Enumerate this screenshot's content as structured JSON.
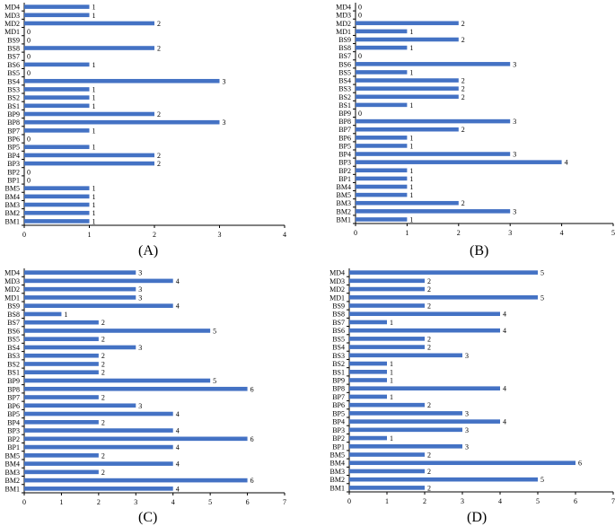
{
  "chart_data": [
    {
      "panel": "(A)",
      "type": "bar",
      "orientation": "horizontal",
      "categories": [
        "BM1",
        "BM2",
        "BM3",
        "BM4",
        "BM5",
        "BP1",
        "BP2",
        "BP3",
        "BP4",
        "BP5",
        "BP6",
        "BP7",
        "BP8",
        "BP9",
        "BS1",
        "BS2",
        "BS3",
        "BS4",
        "BS5",
        "BS6",
        "BS7",
        "BS8",
        "BS9",
        "MD1",
        "MD2",
        "MD3",
        "MD4"
      ],
      "values": [
        1,
        1,
        1,
        1,
        1,
        0,
        0,
        2,
        2,
        1,
        0,
        1,
        3,
        2,
        1,
        1,
        1,
        3,
        0,
        1,
        0,
        2,
        0,
        0,
        2,
        1,
        1
      ],
      "xlim": [
        0,
        4
      ],
      "xticks": [
        "0",
        "1",
        "2",
        "3",
        "4"
      ],
      "color": "#4472c4"
    },
    {
      "panel": "(B)",
      "type": "bar",
      "orientation": "horizontal",
      "categories": [
        "BM1",
        "BM2",
        "BM3",
        "BM5",
        "BM4",
        "BP1",
        "BP2",
        "BP3",
        "BP4",
        "BP5",
        "BP6",
        "BP7",
        "BP8",
        "BP9",
        "BS1",
        "BS2",
        "BS3",
        "BS4",
        "BS5",
        "BS6",
        "BS7",
        "BS8",
        "BS9",
        "MD1",
        "MD2",
        "MD3",
        "MD4"
      ],
      "values": [
        1,
        3,
        2,
        1,
        1,
        1,
        1,
        4,
        3,
        1,
        1,
        2,
        3,
        0,
        1,
        2,
        2,
        2,
        1,
        3,
        0,
        1,
        2,
        1,
        2,
        0,
        0
      ],
      "xlim": [
        0,
        5
      ],
      "xticks": [
        "0",
        "1",
        "2",
        "3",
        "4",
        "5"
      ],
      "color": "#4472c4"
    },
    {
      "panel": "(C)",
      "type": "bar",
      "orientation": "horizontal",
      "categories": [
        "BM1",
        "BM2",
        "BM3",
        "BM4",
        "BM5",
        "BP1",
        "BP2",
        "BP3",
        "BP4",
        "BP5",
        "BP6",
        "BP7",
        "BP8",
        "BP9",
        "BS1",
        "BS2",
        "BS3",
        "BS4",
        "BS5",
        "BS6",
        "BS7",
        "BS8",
        "BS9",
        "MD1",
        "MD2",
        "MD3",
        "MD4"
      ],
      "values": [
        4,
        6,
        2,
        4,
        2,
        4,
        6,
        4,
        2,
        4,
        3,
        2,
        6,
        5,
        2,
        2,
        2,
        3,
        2,
        5,
        2,
        1,
        4,
        3,
        3,
        4,
        3
      ],
      "xlim": [
        0,
        7
      ],
      "xticks": [
        "0",
        "1",
        "2",
        "3",
        "4",
        "5",
        "6",
        "7"
      ],
      "color": "#4472c4"
    },
    {
      "panel": "(D)",
      "type": "bar",
      "orientation": "horizontal",
      "categories": [
        "BM1",
        "BM2",
        "BM3",
        "BM4",
        "BM5",
        "BP1",
        "BP2",
        "BP3",
        "BP4",
        "BP5",
        "BP6",
        "BP7",
        "BP8",
        "BP9",
        "BS1",
        "BS2",
        "BS3",
        "BS4",
        "BS5",
        "BS6",
        "BS7",
        "BS8",
        "BS9",
        "MD1",
        "MD2",
        "MD3",
        "MD4"
      ],
      "values": [
        2,
        5,
        2,
        6,
        2,
        3,
        1,
        3,
        4,
        3,
        2,
        1,
        4,
        1,
        1,
        1,
        3,
        2,
        2,
        4,
        1,
        4,
        2,
        5,
        2,
        2,
        5
      ],
      "xlim": [
        0,
        7
      ],
      "xticks": [
        "0",
        "1",
        "2",
        "3",
        "4",
        "5",
        "6",
        "7"
      ],
      "color": "#4472c4"
    }
  ]
}
